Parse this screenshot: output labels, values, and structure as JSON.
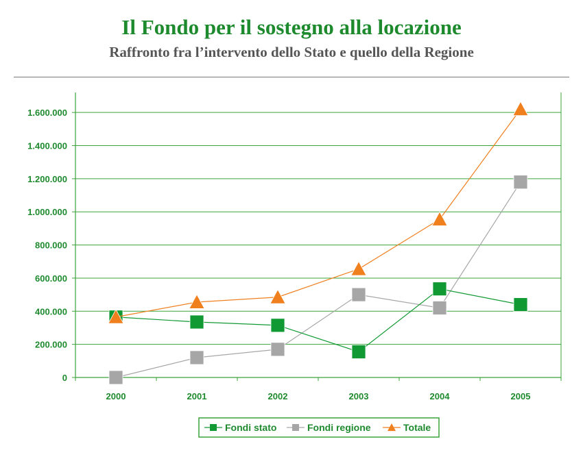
{
  "title": "Il Fondo per il sostegno alla locazione",
  "subtitle": "Raffronto fra l’intervento dello Stato e quello della Regione",
  "colors": {
    "accent": "#1e8a2e",
    "gridline": "#3aa33a",
    "fondi_stato": "#119933",
    "fondi_regione": "#a6a6a6",
    "totale": "#f07f1e"
  },
  "chart_data": {
    "type": "line",
    "title": "",
    "xlabel": "",
    "ylabel": "",
    "x": [
      "2000",
      "2001",
      "2002",
      "2003",
      "2004",
      "2005"
    ],
    "ylim": [
      0,
      1700000
    ],
    "yticks": [
      0,
      200000,
      400000,
      600000,
      800000,
      1000000,
      1200000,
      1400000,
      1600000
    ],
    "ytick_labels": [
      "0",
      "200.000",
      "400.000",
      "600.000",
      "800.000",
      "1.000.000",
      "1.200.000",
      "1.400.000",
      "1.600.000"
    ],
    "grid": true,
    "legend_position": "bottom",
    "series": [
      {
        "name": "Fondi stato",
        "marker": "square",
        "color": "#119933",
        "values": [
          365000,
          335000,
          315000,
          155000,
          535000,
          440000
        ]
      },
      {
        "name": "Fondi regione",
        "marker": "square",
        "color": "#a6a6a6",
        "values": [
          0,
          120000,
          170000,
          500000,
          420000,
          1180000
        ]
      },
      {
        "name": "Totale",
        "marker": "triangle",
        "color": "#f07f1e",
        "values": [
          365000,
          455000,
          485000,
          655000,
          955000,
          1620000
        ]
      }
    ]
  }
}
